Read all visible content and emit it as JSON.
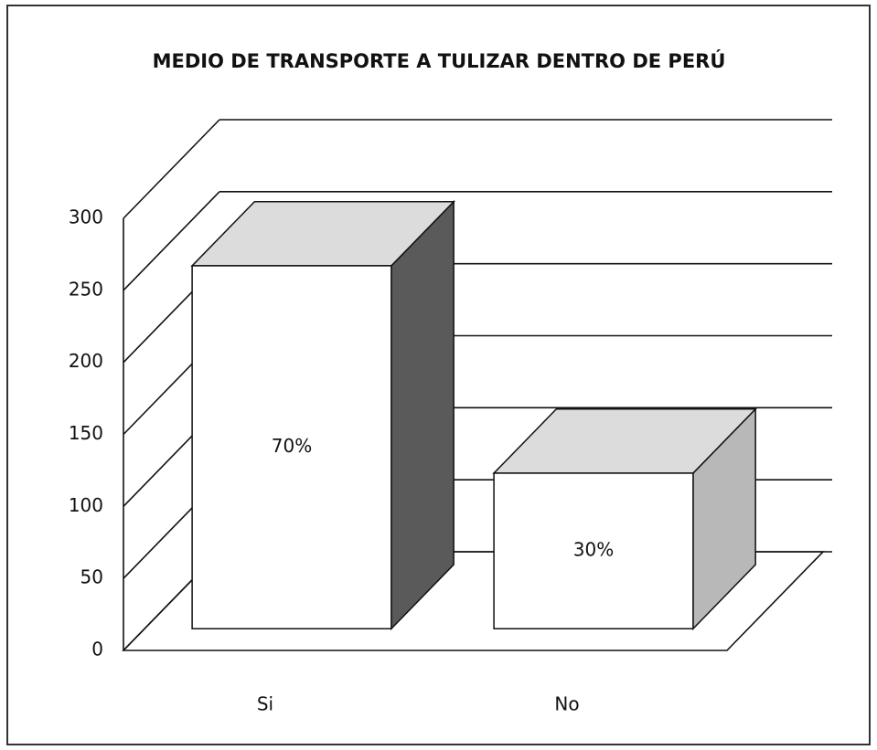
{
  "chart_data": {
    "type": "bar3d",
    "title": "MEDIO DE TRANSPORTE A TULIZAR DENTRO DE PERÚ",
    "categories": [
      "Si",
      "No"
    ],
    "values": [
      252,
      108
    ],
    "data_labels": [
      "70%",
      "30%"
    ],
    "color": "#ffffff",
    "side_colors": [
      "#5a5a5a",
      "#b8b8b8"
    ],
    "top_color": "#dcdcdc",
    "ylim": [
      0,
      300
    ],
    "yticks": [
      0,
      50,
      100,
      150,
      200,
      250,
      300
    ],
    "grid": true
  }
}
